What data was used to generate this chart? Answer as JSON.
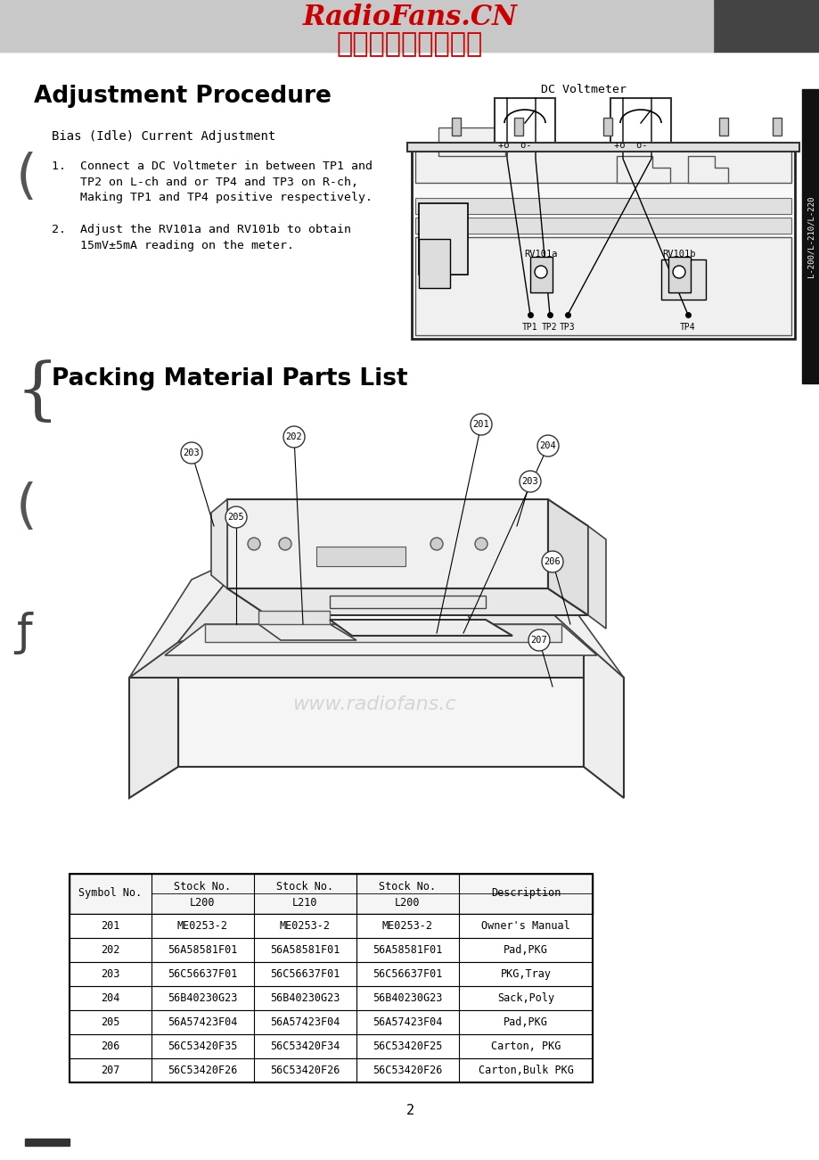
{
  "bg_color": "#ffffff",
  "header_line1": "RadioFans.CN",
  "header_line2": "收音机爱好者资料库",
  "section1_title": "Adjustment Procedure",
  "bias_title": "Bias (Idle) Current Adjustment",
  "dc_voltmeter_label": "DC Voltmeter",
  "rv101a_label": "RV101a",
  "rv101b_label": "RV101b",
  "tp_labels": [
    "TP1",
    "TP2",
    "TP3",
    "TP4"
  ],
  "section2_title": "Packing Material Parts List",
  "table_headers_row1": [
    "Symbol No.",
    "Stock No.",
    "Stock No.",
    "Stock No.",
    "Description"
  ],
  "table_headers_row2": [
    "",
    "L200",
    "L210",
    "L200",
    ""
  ],
  "table_data": [
    [
      "201",
      "ME0253-2",
      "ME0253-2",
      "ME0253-2",
      "Owner's Manual"
    ],
    [
      "202",
      "56A58581F01",
      "56A58581F01",
      "56A58581F01",
      "Pad,PKG"
    ],
    [
      "203",
      "56C56637F01",
      "56C56637F01",
      "56C56637F01",
      "PKG,Tray"
    ],
    [
      "204",
      "56B40230G23",
      "56B40230G23",
      "56B40230G23",
      "Sack,Poly"
    ],
    [
      "205",
      "56A57423F04",
      "56A57423F04",
      "56A57423F04",
      "Pad,PKG"
    ],
    [
      "206",
      "56C53420F35",
      "56C53420F34",
      "56C53420F25",
      "Carton, PKG"
    ],
    [
      "207",
      "56C53420F26",
      "56C53420F26",
      "56C53420F26",
      "Carton,Bulk PKG"
    ]
  ],
  "page_number": "2",
  "side_label": "L-200/L-210/L-220"
}
